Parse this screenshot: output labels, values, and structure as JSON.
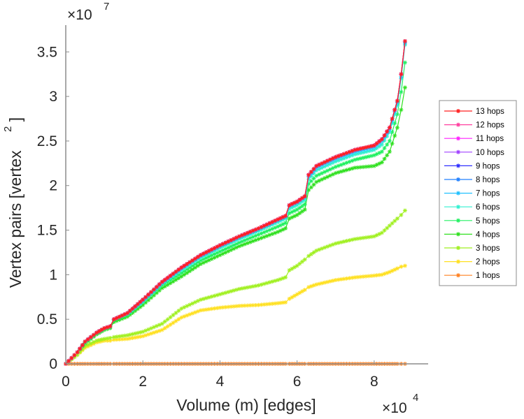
{
  "chart_data": {
    "type": "line",
    "title": "",
    "xlabel": "Volume (m) [edges]",
    "ylabel": "Vertex pairs [vertex",
    "ylabel_superscript": "2",
    "ylabel_close": "]",
    "x_multiplier": "×10",
    "x_multiplier_exp": "4",
    "y_multiplier": "×10",
    "y_multiplier_exp": "7",
    "xlim": [
      0,
      9.4
    ],
    "ylim": [
      0,
      3.8
    ],
    "xticks": [
      0,
      2,
      4,
      6,
      8
    ],
    "xtick_labels": [
      "0",
      "2",
      "4",
      "6",
      "8"
    ],
    "yticks": [
      0,
      0.5,
      1,
      1.5,
      2,
      2.5,
      3,
      3.5
    ],
    "ytick_labels": [
      "0",
      "0.5",
      "1",
      "1.5",
      "2",
      "2.5",
      "3",
      "3.5"
    ],
    "grid": false,
    "legend_position": "right",
    "x": [
      0,
      0.3,
      0.5,
      0.8,
      1.0,
      1.15,
      1.25,
      1.6,
      2.0,
      2.5,
      3.0,
      3.5,
      4.0,
      4.5,
      5.0,
      5.5,
      5.7,
      5.8,
      6.0,
      6.2,
      6.3,
      6.5,
      7.0,
      7.5,
      8.0,
      8.2,
      8.4,
      8.6,
      8.7,
      8.8
    ],
    "series": [
      {
        "name": "13 hops",
        "color": "#ff2020",
        "values": [
          0,
          0.13,
          0.25,
          0.35,
          0.4,
          0.42,
          0.5,
          0.57,
          0.72,
          0.92,
          1.08,
          1.22,
          1.33,
          1.43,
          1.52,
          1.62,
          1.66,
          1.78,
          1.82,
          1.88,
          2.12,
          2.22,
          2.32,
          2.4,
          2.45,
          2.52,
          2.65,
          2.95,
          3.25,
          3.62
        ]
      },
      {
        "name": "12 hops",
        "color": "#ff40a0",
        "values": [
          0,
          0.13,
          0.25,
          0.35,
          0.4,
          0.42,
          0.5,
          0.57,
          0.72,
          0.92,
          1.08,
          1.22,
          1.33,
          1.43,
          1.52,
          1.62,
          1.66,
          1.78,
          1.82,
          1.88,
          2.12,
          2.22,
          2.32,
          2.4,
          2.45,
          2.52,
          2.65,
          2.95,
          3.25,
          3.62
        ]
      },
      {
        "name": "11 hops",
        "color": "#ff20ff",
        "values": [
          0,
          0.13,
          0.25,
          0.35,
          0.4,
          0.42,
          0.5,
          0.57,
          0.72,
          0.92,
          1.08,
          1.22,
          1.33,
          1.43,
          1.52,
          1.62,
          1.66,
          1.78,
          1.82,
          1.88,
          2.12,
          2.22,
          2.32,
          2.4,
          2.45,
          2.52,
          2.65,
          2.95,
          3.25,
          3.62
        ]
      },
      {
        "name": "10 hops",
        "color": "#a040ff",
        "values": [
          0,
          0.13,
          0.25,
          0.35,
          0.4,
          0.42,
          0.5,
          0.57,
          0.72,
          0.92,
          1.08,
          1.22,
          1.33,
          1.43,
          1.52,
          1.62,
          1.66,
          1.78,
          1.82,
          1.88,
          2.12,
          2.22,
          2.32,
          2.4,
          2.45,
          2.52,
          2.65,
          2.95,
          3.25,
          3.62
        ]
      },
      {
        "name": "9 hops",
        "color": "#3030ff",
        "values": [
          0,
          0.13,
          0.25,
          0.35,
          0.4,
          0.42,
          0.5,
          0.57,
          0.72,
          0.92,
          1.08,
          1.22,
          1.33,
          1.43,
          1.52,
          1.62,
          1.66,
          1.78,
          1.82,
          1.88,
          2.12,
          2.22,
          2.32,
          2.4,
          2.45,
          2.52,
          2.65,
          2.95,
          3.25,
          3.62
        ]
      },
      {
        "name": "8 hops",
        "color": "#2080ff",
        "values": [
          0,
          0.13,
          0.25,
          0.35,
          0.4,
          0.42,
          0.5,
          0.57,
          0.72,
          0.92,
          1.08,
          1.22,
          1.33,
          1.43,
          1.52,
          1.62,
          1.66,
          1.78,
          1.82,
          1.88,
          2.12,
          2.22,
          2.32,
          2.4,
          2.45,
          2.52,
          2.65,
          2.95,
          3.25,
          3.62
        ]
      },
      {
        "name": "7 hops",
        "color": "#20c0ff",
        "values": [
          0,
          0.13,
          0.25,
          0.35,
          0.4,
          0.42,
          0.5,
          0.57,
          0.71,
          0.91,
          1.07,
          1.21,
          1.32,
          1.42,
          1.51,
          1.61,
          1.65,
          1.77,
          1.81,
          1.87,
          2.1,
          2.2,
          2.3,
          2.38,
          2.43,
          2.5,
          2.63,
          2.93,
          3.22,
          3.6
        ]
      },
      {
        "name": "6 hops",
        "color": "#30f0d0",
        "values": [
          0,
          0.13,
          0.25,
          0.35,
          0.4,
          0.42,
          0.5,
          0.56,
          0.7,
          0.9,
          1.05,
          1.19,
          1.3,
          1.4,
          1.49,
          1.59,
          1.63,
          1.74,
          1.78,
          1.84,
          2.07,
          2.17,
          2.27,
          2.35,
          2.4,
          2.46,
          2.6,
          2.9,
          3.2,
          3.58
        ]
      },
      {
        "name": "5 hops",
        "color": "#20f060",
        "values": [
          0,
          0.13,
          0.24,
          0.34,
          0.39,
          0.41,
          0.49,
          0.55,
          0.69,
          0.88,
          1.02,
          1.16,
          1.26,
          1.36,
          1.45,
          1.54,
          1.58,
          1.69,
          1.73,
          1.79,
          2.02,
          2.11,
          2.21,
          2.29,
          2.34,
          2.38,
          2.5,
          2.8,
          3.05,
          3.38
        ]
      },
      {
        "name": "4 hops",
        "color": "#30e020",
        "values": [
          0,
          0.13,
          0.23,
          0.33,
          0.38,
          0.4,
          0.47,
          0.53,
          0.66,
          0.85,
          0.98,
          1.12,
          1.22,
          1.32,
          1.4,
          1.48,
          1.52,
          1.63,
          1.67,
          1.73,
          1.95,
          2.04,
          2.14,
          2.2,
          2.22,
          2.26,
          2.38,
          2.65,
          2.85,
          3.1
        ]
      },
      {
        "name": "3 hops",
        "color": "#a0f020",
        "values": [
          0,
          0.1,
          0.2,
          0.26,
          0.28,
          0.29,
          0.3,
          0.32,
          0.36,
          0.45,
          0.62,
          0.72,
          0.78,
          0.84,
          0.88,
          0.94,
          0.97,
          1.05,
          1.1,
          1.17,
          1.21,
          1.27,
          1.35,
          1.4,
          1.43,
          1.47,
          1.55,
          1.63,
          1.67,
          1.72
        ]
      },
      {
        "name": "2 hops",
        "color": "#ffe020",
        "values": [
          0,
          0.1,
          0.18,
          0.24,
          0.26,
          0.26,
          0.27,
          0.28,
          0.31,
          0.38,
          0.52,
          0.6,
          0.63,
          0.65,
          0.66,
          0.68,
          0.69,
          0.73,
          0.78,
          0.83,
          0.86,
          0.89,
          0.94,
          0.97,
          0.99,
          1.0,
          1.03,
          1.07,
          1.09,
          1.1
        ]
      },
      {
        "name": "1 hops",
        "color": "#ff8020",
        "values": [
          0,
          0,
          0,
          0,
          0,
          0,
          0,
          0,
          0,
          0,
          0,
          0,
          0,
          0,
          0,
          0,
          0,
          0,
          0,
          0,
          0,
          0,
          0,
          0,
          0,
          0,
          0,
          0,
          0,
          0
        ]
      }
    ]
  }
}
